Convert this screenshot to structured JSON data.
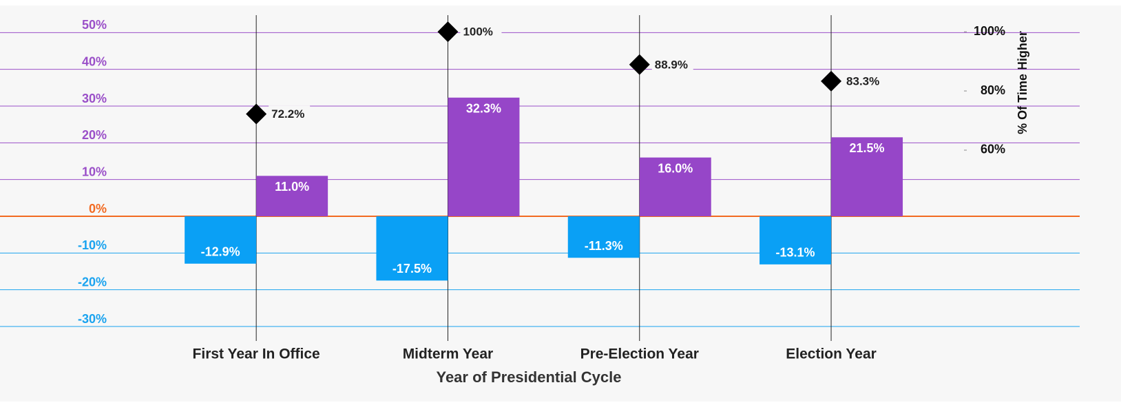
{
  "chart_data": {
    "type": "bar",
    "categories": [
      "First Year In Office",
      "Midterm Year",
      "Pre-Election Year",
      "Election Year"
    ],
    "series": [
      {
        "color": "#0aa0f5",
        "values": [
          -12.9,
          -17.5,
          -11.3,
          -13.1
        ],
        "value_labels": [
          "-12.9%",
          "-17.5%",
          "-11.3%",
          "-13.1%"
        ]
      },
      {
        "color": "#9646c8",
        "values": [
          11.0,
          32.3,
          16.0,
          21.5
        ],
        "value_labels": [
          "11.0%",
          "32.3%",
          "16.0%",
          "21.5%"
        ]
      },
      {
        "type": "scatter",
        "axis": "y2",
        "color": "#000000",
        "values": [
          72.2,
          100,
          88.9,
          83.3
        ],
        "value_labels": [
          "72.2%",
          "100%",
          "88.9%",
          "83.3%"
        ]
      }
    ],
    "ylim": [
      -33,
      57
    ],
    "yticks": [
      {
        "value": -30,
        "label": "-30%"
      },
      {
        "value": -20,
        "label": "-20%"
      },
      {
        "value": -10,
        "label": "-10%"
      },
      {
        "value": 0,
        "label": "0%"
      },
      {
        "value": 10,
        "label": "10%"
      },
      {
        "value": 20,
        "label": "20%"
      },
      {
        "value": 30,
        "label": "30%"
      },
      {
        "value": 40,
        "label": "40%"
      },
      {
        "value": 50,
        "label": "50%"
      }
    ],
    "y2lim": [
      -3.3,
      108.4
    ],
    "y2ticks": [
      {
        "value": 60,
        "label": "60%"
      },
      {
        "value": 80,
        "label": "80%"
      },
      {
        "value": 100,
        "label": "100%"
      }
    ],
    "y2label": "% Of Time Higher",
    "xlabel": "Year of Presidential Cycle",
    "grid": true
  }
}
